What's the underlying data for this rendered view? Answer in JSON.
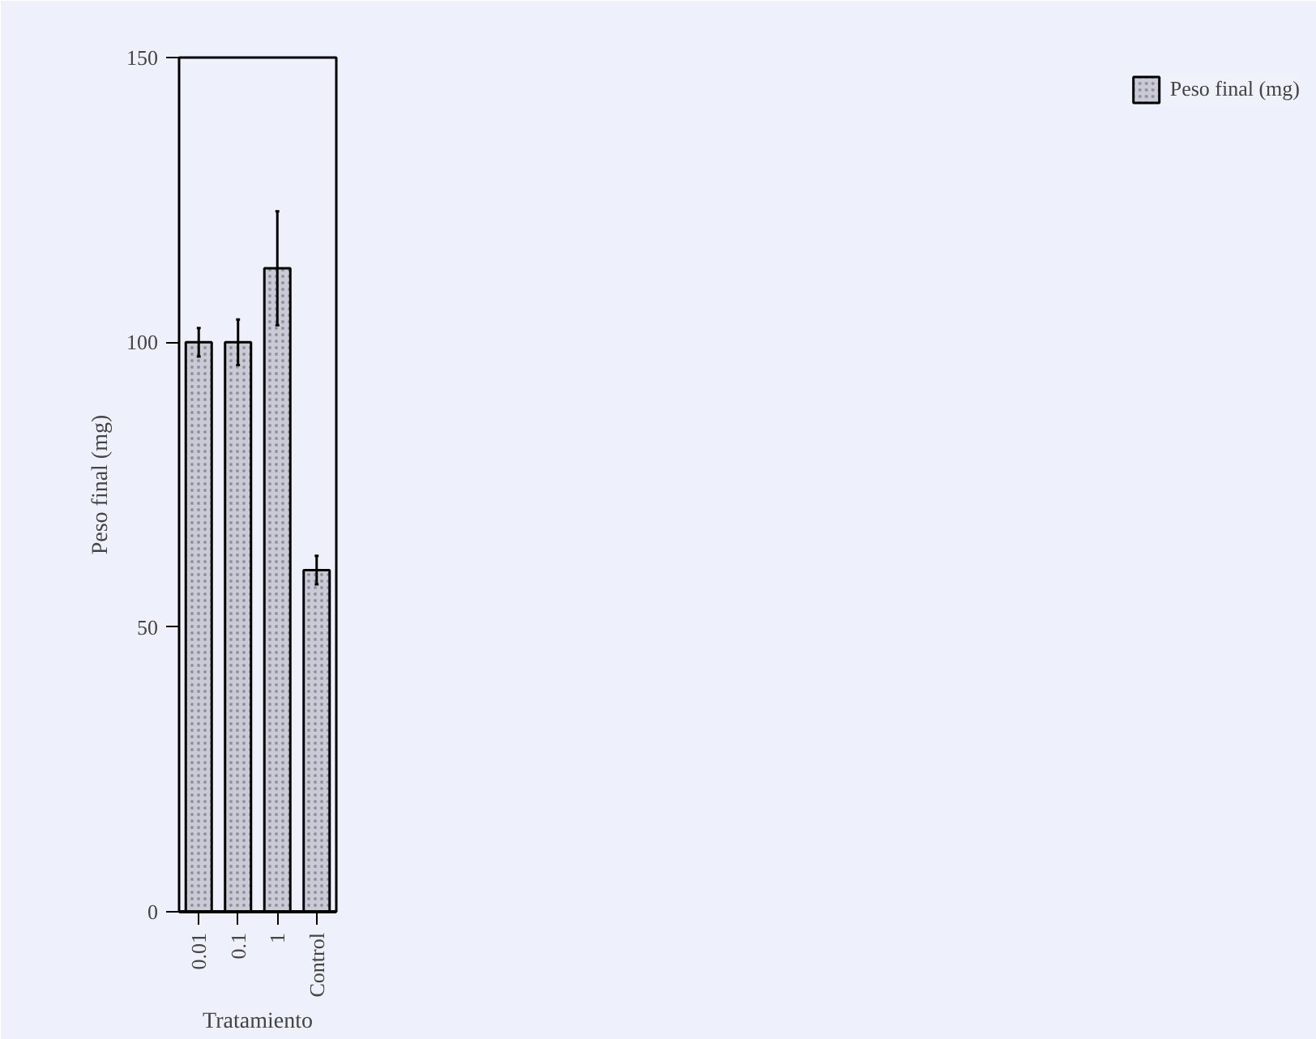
{
  "chart_data": {
    "type": "bar",
    "xlabel": "Tratamiento",
    "ylabel": "Peso final (mg)",
    "categories": [
      "0.01",
      "0.1",
      "1",
      "Control"
    ],
    "series": [
      {
        "name": "Peso final (mg)",
        "color": "#c9cad6",
        "values": [
          100,
          100,
          113,
          60
        ],
        "errors": [
          2.5,
          4,
          10,
          2.5
        ]
      }
    ],
    "ylim": [
      0,
      150
    ],
    "yticks": [
      0,
      50,
      100,
      150
    ],
    "grid": false,
    "legend": "right"
  }
}
